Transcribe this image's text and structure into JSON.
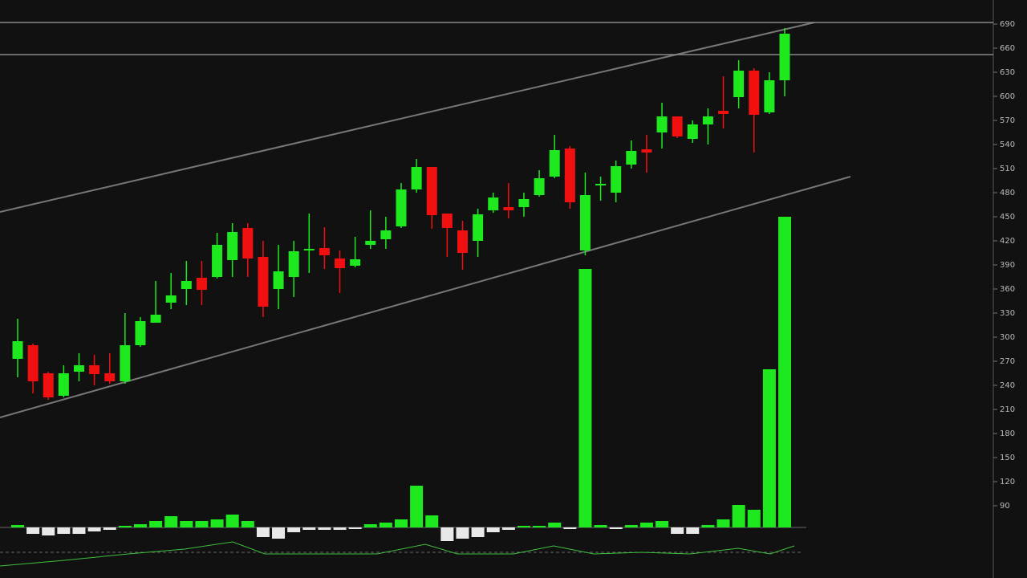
{
  "chart_data": {
    "type": "candlestick",
    "open": [
      273,
      290,
      255,
      227,
      257,
      265,
      255,
      245,
      290,
      318,
      343,
      360,
      374,
      375,
      396,
      436,
      400,
      360,
      375,
      409,
      411,
      398,
      389,
      415,
      422,
      438,
      484,
      512,
      454,
      433,
      420,
      458,
      462,
      462,
      477,
      500,
      535,
      408,
      489,
      480,
      515,
      534,
      555,
      575,
      547,
      565,
      582,
      599,
      632,
      580,
      620
    ],
    "high": [
      323,
      292,
      257,
      265,
      280,
      278,
      280,
      330,
      325,
      370,
      380,
      395,
      395,
      430,
      442,
      442,
      420,
      415,
      420,
      454,
      437,
      408,
      425,
      458,
      450,
      492,
      522,
      512,
      454,
      445,
      460,
      480,
      492,
      480,
      508,
      552,
      538,
      505,
      500,
      520,
      545,
      552,
      592,
      575,
      570,
      585,
      625,
      645,
      635,
      630,
      685
    ],
    "low": [
      250,
      230,
      222,
      225,
      245,
      240,
      242,
      242,
      288,
      318,
      335,
      340,
      340,
      373,
      375,
      375,
      325,
      335,
      350,
      380,
      385,
      355,
      387,
      410,
      410,
      436,
      480,
      435,
      400,
      384,
      400,
      455,
      448,
      450,
      475,
      498,
      460,
      402,
      470,
      468,
      510,
      505,
      535,
      548,
      542,
      540,
      560,
      585,
      530,
      578,
      600
    ],
    "close": [
      295,
      245,
      225,
      255,
      265,
      254,
      245,
      290,
      320,
      328,
      352,
      370,
      359,
      415,
      431,
      398,
      338,
      382,
      407,
      410,
      402,
      386,
      397,
      420,
      433,
      484,
      512,
      452,
      436,
      405,
      453,
      474,
      458,
      472,
      498,
      533,
      468,
      477,
      491,
      513,
      532,
      530,
      575,
      550,
      565,
      575,
      578,
      632,
      577,
      620,
      678
    ],
    "volume": [
      3,
      -8,
      -10,
      -8,
      -8,
      -5,
      -3,
      2,
      4,
      8,
      14,
      8,
      8,
      10,
      16,
      8,
      -12,
      -14,
      -6,
      -3,
      -3,
      -3,
      -2,
      4,
      6,
      10,
      52,
      15,
      -17,
      -14,
      -12,
      -6,
      -3,
      2,
      2,
      6,
      -2,
      322,
      3,
      -2,
      3,
      6,
      8,
      -8,
      -8,
      3,
      10,
      28,
      22,
      197,
      387
    ],
    "ylim": [
      0,
      720
    ],
    "yticks": [
      90,
      120,
      150,
      180,
      210,
      240,
      270,
      300,
      330,
      360,
      390,
      420,
      450,
      480,
      510,
      540,
      570,
      600,
      630,
      660,
      690
    ],
    "volume_ylim": [
      0,
      400
    ],
    "price_lines": [
      692,
      652
    ],
    "up_color": "#1ee81e",
    "down_color": "#f01010",
    "volume_down_color": "#e8e8e8"
  }
}
